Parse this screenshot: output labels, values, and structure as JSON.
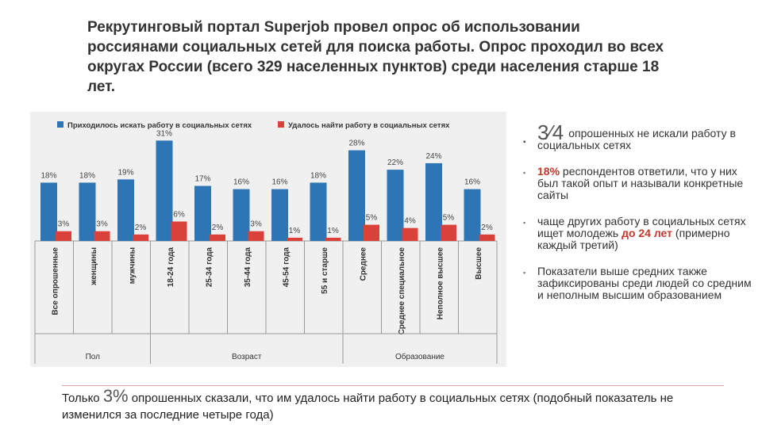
{
  "title": "Рекрутинговый портал Superjob провел опрос об использовании россиянами социальных сетей для поиска работы. Опрос проходил во всех округах России (всего 329 населенных пунктов) среди населения старше 18 лет.",
  "bullets": {
    "b1_fraction": "3⁄4",
    "b1_text": "опрошенных не искали работу в социальных сетях",
    "b2_highlight": "18%",
    "b2_text": " респондентов ответили, что у них был такой опыт и называли конкретные сайты",
    "b3_text_a": "чаще других работу в социальных сетях ищет молодежь ",
    "b3_highlight": "до 24 лет",
    "b3_text_b": " (примерно каждый третий)",
    "b4_text": "Показатели выше средних также зафиксированы среди людей со средним и неполным высшим образованием",
    "bullet_mark": "▪"
  },
  "footer": {
    "prefix": "Только ",
    "big": "3%",
    "text": " опрошенных сказали, что им удалось найти работу в социальных сетях (подобный показатель не изменился за последние четыре года)"
  },
  "colors": {
    "blue": "#2e75b6",
    "red": "#d9413a",
    "highlight": "#c0392b"
  },
  "chart_data": {
    "type": "bar",
    "categories": [
      "Все опрошенные",
      "женщины",
      "мужчины",
      "18-24 года",
      "25-34 года",
      "35-44 года",
      "45-54 года",
      "55 и старше",
      "Среднее",
      "Среднее специальное",
      "Неполное высшее",
      "Высшее"
    ],
    "series": [
      {
        "name": "Приходилось искать работу в социальных сетях",
        "values": [
          18,
          18,
          19,
          31,
          17,
          16,
          16,
          18,
          28,
          22,
          24,
          16
        ]
      },
      {
        "name": "Удалось найти работу в социальных сетях",
        "values": [
          3,
          3,
          2,
          6,
          2,
          3,
          1,
          1,
          5,
          4,
          5,
          2
        ]
      }
    ],
    "groups": [
      {
        "label": "Пол",
        "from": 0,
        "to": 2
      },
      {
        "label": "Возраст",
        "from": 3,
        "to": 7
      },
      {
        "label": "Образование",
        "from": 8,
        "to": 11
      }
    ],
    "ylim": [
      0,
      35
    ],
    "legend": "top",
    "value_suffix": "%"
  }
}
